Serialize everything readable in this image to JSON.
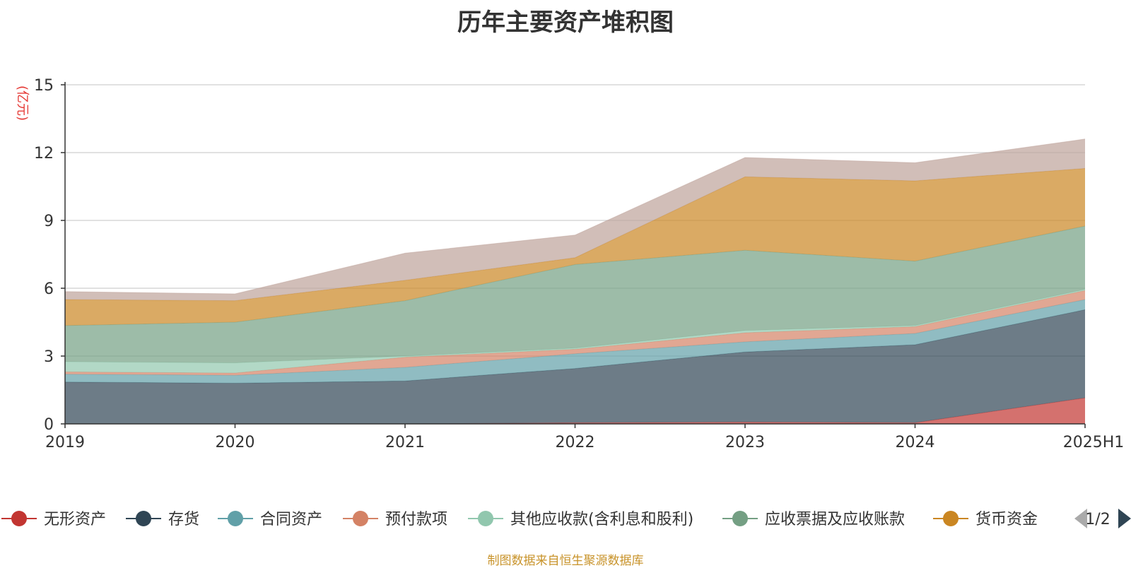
{
  "title": "历年主要资产堆积图",
  "source": "制图数据来自恒生聚源数据库",
  "legend_pager": "1/2",
  "chart_data": {
    "type": "area",
    "stacked": true,
    "ylabel": "(亿元)",
    "ylim": [
      0,
      15
    ],
    "yticks": [
      0,
      3,
      6,
      9,
      12,
      15
    ],
    "grid": true,
    "legend_position": "bottom",
    "categories": [
      "2019",
      "2020",
      "2021",
      "2022",
      "2023",
      "2024",
      "2025H1"
    ],
    "series": [
      {
        "name": "无形资产",
        "color": "#c23531",
        "values": [
          0.0,
          0.0,
          0.0,
          0.05,
          0.08,
          0.05,
          1.15
        ]
      },
      {
        "name": "存货",
        "color": "#2f4554",
        "values": [
          1.85,
          1.8,
          1.9,
          2.4,
          3.1,
          3.45,
          3.9
        ]
      },
      {
        "name": "合同资产",
        "color": "#61a0a8",
        "values": [
          0.35,
          0.35,
          0.6,
          0.65,
          0.45,
          0.5,
          0.45
        ]
      },
      {
        "name": "预付款项",
        "color": "#d48265",
        "values": [
          0.1,
          0.1,
          0.45,
          0.2,
          0.4,
          0.3,
          0.4
        ]
      },
      {
        "name": "其他应收款(含利息和股利)",
        "color": "#91c7ae",
        "values": [
          0.45,
          0.45,
          0.05,
          0.05,
          0.1,
          0.05,
          0.05
        ]
      },
      {
        "name": "应收票据及应收账款",
        "color": "#749f83",
        "values": [
          1.6,
          1.8,
          2.45,
          3.7,
          3.55,
          2.85,
          2.8
        ]
      },
      {
        "name": "货币资金",
        "color": "#ca8622",
        "values": [
          1.15,
          0.95,
          0.9,
          0.3,
          3.25,
          3.55,
          2.55
        ]
      },
      {
        "name": "",
        "color": "#bda29a",
        "values": [
          0.35,
          0.3,
          1.2,
          1.0,
          0.85,
          0.8,
          1.3
        ]
      }
    ]
  }
}
